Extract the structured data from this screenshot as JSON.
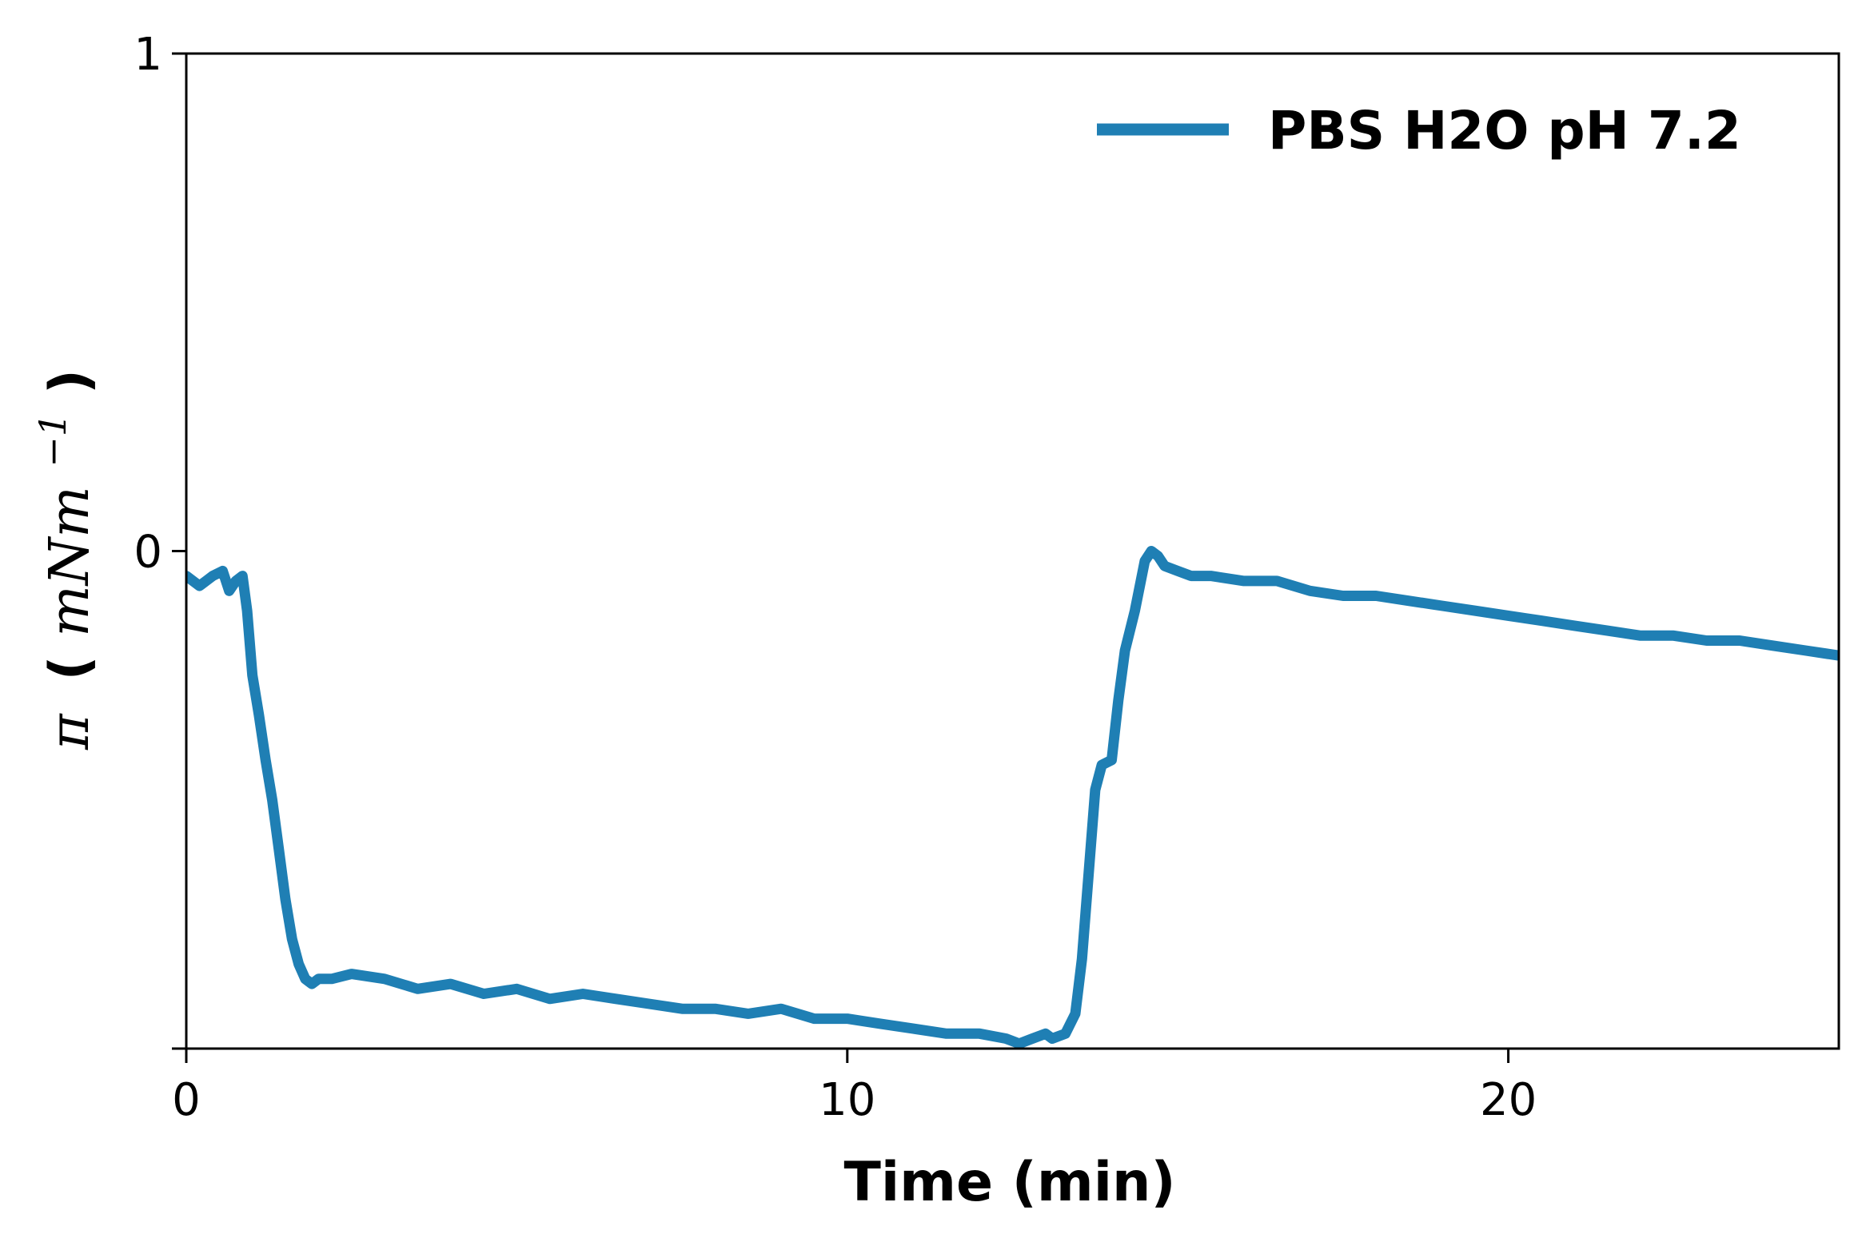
{
  "chart_data": {
    "type": "line",
    "xlabel": "Time (min)",
    "ylabel": {
      "symbol": "π",
      "open": "(",
      "unit": "mNm",
      "exponent": "−1",
      "close": ")"
    },
    "xlim": [
      0,
      25
    ],
    "ylim": [
      -1,
      1
    ],
    "xticks": [
      {
        "value": 0,
        "label": "0"
      },
      {
        "value": 10,
        "label": "10"
      },
      {
        "value": 20,
        "label": "20"
      }
    ],
    "yticks": [
      {
        "value": -1,
        "label": ""
      },
      {
        "value": 0,
        "label": "0"
      },
      {
        "value": 1,
        "label": "1"
      }
    ],
    "grid": false,
    "legend_position": "top-right",
    "series": [
      {
        "name": "PBS H2O pH 7.2",
        "color": "#1f7fb4",
        "x": [
          0.0,
          0.2,
          0.4,
          0.55,
          0.65,
          0.75,
          0.85,
          0.92,
          1.0,
          1.1,
          1.2,
          1.3,
          1.4,
          1.5,
          1.6,
          1.7,
          1.8,
          1.9,
          2.0,
          2.2,
          2.5,
          3.0,
          3.5,
          4.0,
          4.5,
          5.0,
          5.5,
          6.0,
          6.5,
          7.0,
          7.5,
          8.0,
          8.5,
          9.0,
          9.5,
          10.0,
          10.5,
          11.0,
          11.5,
          12.0,
          12.4,
          12.6,
          12.8,
          13.0,
          13.1,
          13.3,
          13.45,
          13.55,
          13.65,
          13.75,
          13.85,
          14.0,
          14.1,
          14.2,
          14.35,
          14.5,
          14.6,
          14.7,
          14.8,
          15.0,
          15.2,
          15.5,
          16.0,
          16.5,
          17.0,
          17.5,
          18.0,
          18.5,
          19.0,
          19.5,
          20.0,
          20.5,
          21.0,
          21.5,
          22.0,
          22.5,
          23.0,
          23.5,
          24.0,
          24.5,
          25.0
        ],
        "y": [
          -0.05,
          -0.07,
          -0.05,
          -0.04,
          -0.08,
          -0.06,
          -0.05,
          -0.12,
          -0.25,
          -0.33,
          -0.42,
          -0.5,
          -0.6,
          -0.7,
          -0.78,
          -0.83,
          -0.86,
          -0.87,
          -0.86,
          -0.86,
          -0.85,
          -0.86,
          -0.88,
          -0.87,
          -0.89,
          -0.88,
          -0.9,
          -0.89,
          -0.9,
          -0.91,
          -0.92,
          -0.92,
          -0.93,
          -0.92,
          -0.94,
          -0.94,
          -0.95,
          -0.96,
          -0.97,
          -0.97,
          -0.98,
          -0.99,
          -0.98,
          -0.97,
          -0.98,
          -0.97,
          -0.93,
          -0.82,
          -0.65,
          -0.48,
          -0.43,
          -0.42,
          -0.3,
          -0.2,
          -0.12,
          -0.02,
          0.0,
          -0.01,
          -0.03,
          -0.04,
          -0.05,
          -0.05,
          -0.06,
          -0.06,
          -0.08,
          -0.09,
          -0.09,
          -0.1,
          -0.11,
          -0.12,
          -0.13,
          -0.14,
          -0.15,
          -0.16,
          -0.17,
          -0.17,
          -0.18,
          -0.18,
          -0.19,
          -0.2,
          -0.21
        ]
      }
    ]
  }
}
